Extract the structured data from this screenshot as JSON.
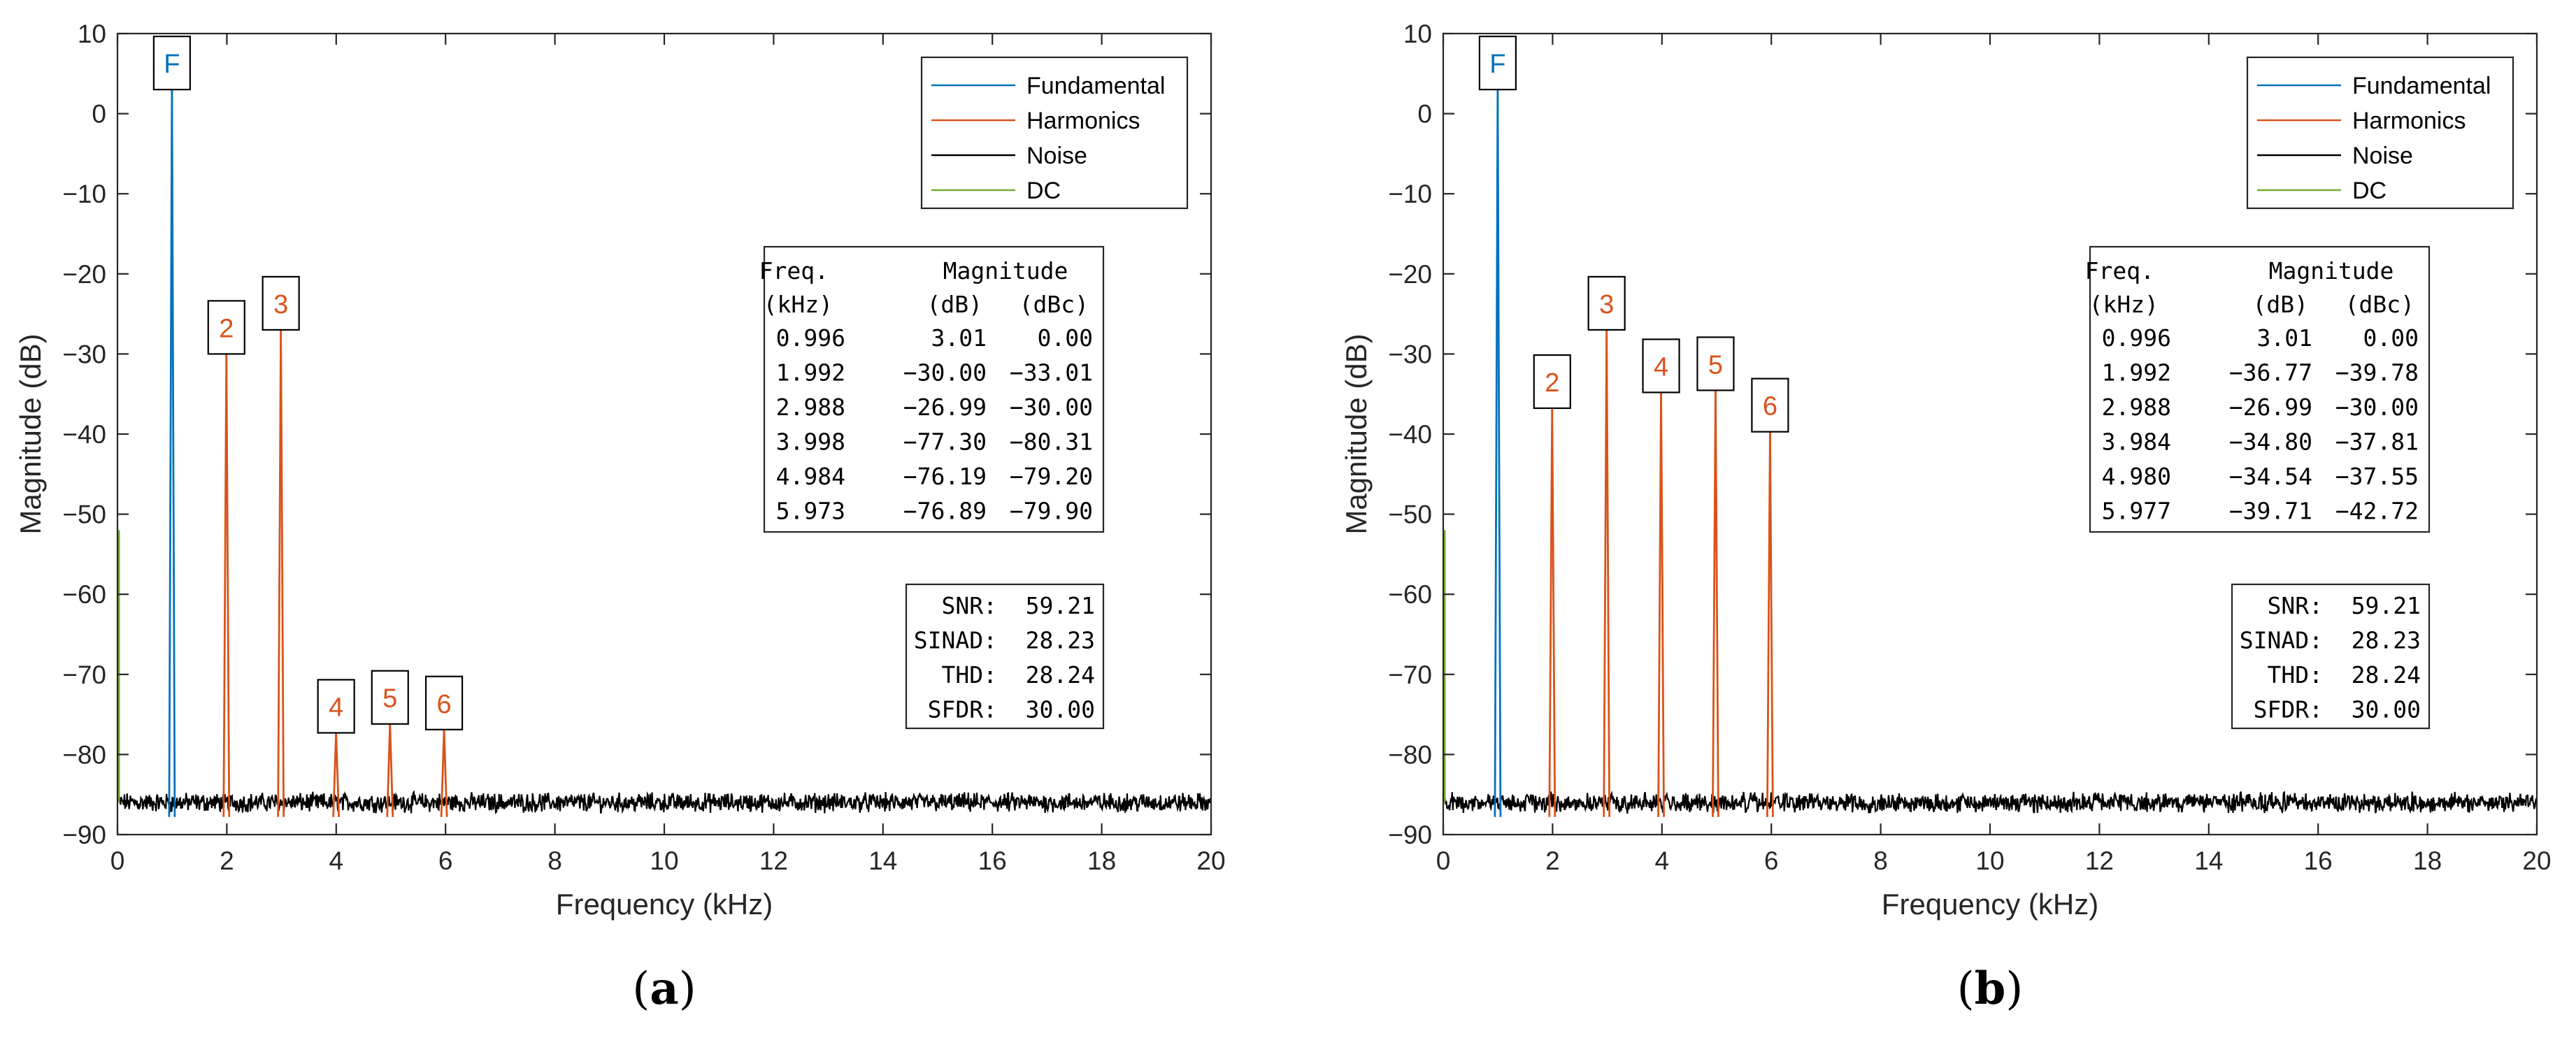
{
  "chart_data": [
    {
      "type": "line",
      "panel_label": "(a)",
      "panel_letter": "a",
      "xlabel": "Frequency (kHz)",
      "ylabel": "Magnitude (dB)",
      "xlim": [
        0,
        20
      ],
      "ylim": [
        -90,
        10
      ],
      "xticks": [
        0,
        2,
        4,
        6,
        8,
        10,
        12,
        14,
        16,
        18,
        20
      ],
      "yticks": [
        10,
        0,
        -10,
        -20,
        -30,
        -40,
        -50,
        -60,
        -70,
        -80,
        -90
      ],
      "noise_floor_db": -86,
      "series": [
        {
          "name": "Fundamental",
          "color": "#0072BD"
        },
        {
          "name": "Harmonics",
          "color": "#D95319"
        },
        {
          "name": "Noise",
          "color": "#000000"
        },
        {
          "name": "DC",
          "color": "#77AC30"
        }
      ],
      "dc": {
        "x": 0,
        "y_top": -52
      },
      "fundamental": {
        "label": "F",
        "x": 0.996,
        "y": 3.01
      },
      "harmonics": [
        {
          "label": "2",
          "x": 1.992,
          "y": -30.0
        },
        {
          "label": "3",
          "x": 2.988,
          "y": -26.99
        },
        {
          "label": "4",
          "x": 3.998,
          "y": -77.3
        },
        {
          "label": "5",
          "x": 4.984,
          "y": -76.19
        },
        {
          "label": "6",
          "x": 5.973,
          "y": -76.89
        }
      ],
      "table": {
        "header1": [
          "Freq.",
          "Magnitude"
        ],
        "header2": [
          "(kHz)",
          "(dB)",
          "(dBc)"
        ],
        "rows": [
          [
            "0.996",
            "3.01",
            "0.00"
          ],
          [
            "1.992",
            "-30.00",
            "-33.01"
          ],
          [
            "2.988",
            "-26.99",
            "-30.00"
          ],
          [
            "3.998",
            "-77.30",
            "-80.31"
          ],
          [
            "4.984",
            "-76.19",
            "-79.20"
          ],
          [
            "5.973",
            "-76.89",
            "-79.90"
          ]
        ]
      },
      "metrics": [
        {
          "label": "SNR:",
          "value": "59.21"
        },
        {
          "label": "SINAD:",
          "value": "28.23"
        },
        {
          "label": "THD:",
          "value": "28.24"
        },
        {
          "label": "SFDR:",
          "value": "30.00"
        }
      ]
    },
    {
      "type": "line",
      "panel_label": "(b)",
      "panel_letter": "b",
      "xlabel": "Frequency (kHz)",
      "ylabel": "Magnitude (dB)",
      "xlim": [
        0,
        20
      ],
      "ylim": [
        -90,
        10
      ],
      "xticks": [
        0,
        2,
        4,
        6,
        8,
        10,
        12,
        14,
        16,
        18,
        20
      ],
      "yticks": [
        10,
        0,
        -10,
        -20,
        -30,
        -40,
        -50,
        -60,
        -70,
        -80,
        -90
      ],
      "noise_floor_db": -86,
      "series": [
        {
          "name": "Fundamental",
          "color": "#0072BD"
        },
        {
          "name": "Harmonics",
          "color": "#D95319"
        },
        {
          "name": "Noise",
          "color": "#000000"
        },
        {
          "name": "DC",
          "color": "#77AC30"
        }
      ],
      "dc": {
        "x": 0,
        "y_top": -52
      },
      "fundamental": {
        "label": "F",
        "x": 0.996,
        "y": 3.01
      },
      "harmonics": [
        {
          "label": "2",
          "x": 1.992,
          "y": -36.77
        },
        {
          "label": "3",
          "x": 2.988,
          "y": -26.99
        },
        {
          "label": "4",
          "x": 3.984,
          "y": -34.8
        },
        {
          "label": "5",
          "x": 4.98,
          "y": -34.54
        },
        {
          "label": "6",
          "x": 5.977,
          "y": -39.71
        }
      ],
      "table": {
        "header1": [
          "Freq.",
          "Magnitude"
        ],
        "header2": [
          "(kHz)",
          "(dB)",
          "(dBc)"
        ],
        "rows": [
          [
            "0.996",
            "3.01",
            "0.00"
          ],
          [
            "1.992",
            "-36.77",
            "-39.78"
          ],
          [
            "2.988",
            "-26.99",
            "-30.00"
          ],
          [
            "3.984",
            "-34.80",
            "-37.81"
          ],
          [
            "4.980",
            "-34.54",
            "-37.55"
          ],
          [
            "5.977",
            "-39.71",
            "-42.72"
          ]
        ]
      },
      "metrics": [
        {
          "label": "SNR:",
          "value": "59.21"
        },
        {
          "label": "SINAD:",
          "value": "28.23"
        },
        {
          "label": "THD:",
          "value": "28.24"
        },
        {
          "label": "SFDR:",
          "value": "30.00"
        }
      ]
    }
  ]
}
